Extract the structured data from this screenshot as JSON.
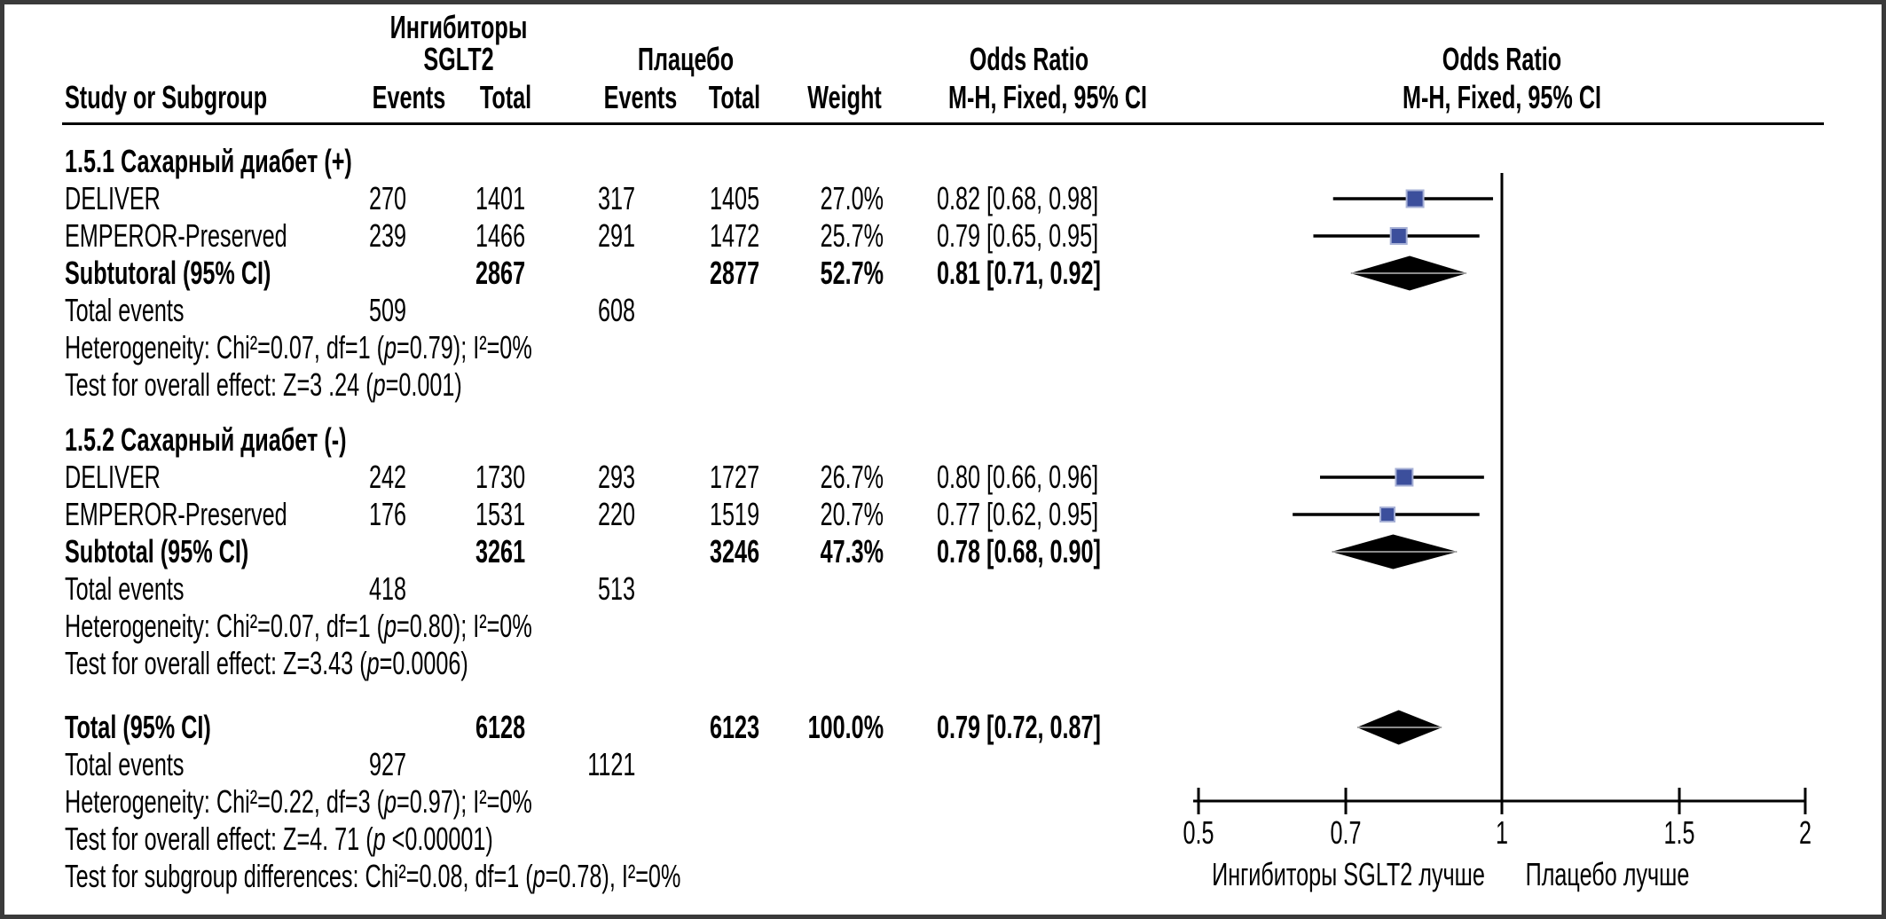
{
  "header": {
    "col_study": "Study or Subgroup",
    "group1_line1": "Ингибиторы",
    "group1_line2": "SGLT2",
    "group2": "Плацебо",
    "col_events1": "Events",
    "col_total1": "Total",
    "col_events2": "Events",
    "col_total2": "Total",
    "col_weight": "Weight",
    "or_text_col_line1": "Odds Ratio",
    "or_text_col_line2": "M-H, Fixed, 95% CI",
    "or_plot_col_line1": "Odds Ratio",
    "or_plot_col_line2": "M-H, Fixed, 95% CI"
  },
  "sections": [
    {
      "title": "1.5.1 Сахарный диабет (+)",
      "rows": [
        {
          "study": "DELIVER",
          "events1": "270",
          "total1": "1401",
          "events2": "317",
          "total2": "1405",
          "weight": "27.0%",
          "or_ci": "0.82 [0.68, 0.98]"
        },
        {
          "study": "EMPEROR-Preserved",
          "events1": "239",
          "total1": "1466",
          "events2": "291",
          "total2": "1472",
          "weight": "25.7%",
          "or_ci": "0.79 [0.65, 0.95]"
        }
      ],
      "subtotal": {
        "label": "Subtutoral (95% CI)",
        "total1": "2867",
        "total2": "2877",
        "weight": "52.7%",
        "or_ci": "0.81 [0.71, 0.92]"
      },
      "total_events": {
        "label": "Total events",
        "events1": "509",
        "events2": "608"
      },
      "heterogeneity": "Heterogeneity: Chi²=0.07, df=1 (p=0.79); I²=0%",
      "overall_effect": "Test for overall effect: Z=3 .24 (p=0.001)"
    },
    {
      "title": "1.5.2 Сахарный диабет (-)",
      "rows": [
        {
          "study": "DELIVER",
          "events1": "242",
          "total1": "1730",
          "events2": "293",
          "total2": "1727",
          "weight": "26.7%",
          "or_ci": "0.80 [0.66, 0.96]"
        },
        {
          "study": "EMPEROR-Preserved",
          "events1": "176",
          "total1": "1531",
          "events2": "220",
          "total2": "1519",
          "weight": "20.7%",
          "or_ci": "0.77 [0.62, 0.95]"
        }
      ],
      "subtotal": {
        "label": "Subtotal (95% CI)",
        "total1": "3261",
        "total2": "3246",
        "weight": "47.3%",
        "or_ci": "0.78 [0.68, 0.90]"
      },
      "total_events": {
        "label": "Total events",
        "events1": "418",
        "events2": "513"
      },
      "heterogeneity": "Heterogeneity: Chi²=0.07, df=1 (p=0.80); I²=0%",
      "overall_effect": "Test for overall effect: Z=3.43 (p=0.0006)"
    }
  ],
  "total_block": {
    "label": "Total (95% CI)",
    "total1": "6128",
    "total2": "6123",
    "weight": "100.0%",
    "or_ci": "0.79 [0.72, 0.87]",
    "total_events": {
      "label": "Total events",
      "events1": "927",
      "events2": "1121"
    },
    "heterogeneity": "Heterogeneity: Chi²=0.22, df=3 (p=0.97); I²=0%",
    "overall_effect": "Test for overall effect: Z=4. 71 (p <0.00001)",
    "subgroup_diff": "Test for subgroup differences: Chi²=0.08, df=1 (p=0.78), I²=0%"
  },
  "chart_data": {
    "type": "scatter",
    "subtype": "forest-plot",
    "x_scale": "log",
    "effect_measure": "Odds Ratio, M-H, Fixed, 95% CI",
    "axis_ticks": [
      "0.5",
      "0.7",
      "1",
      "1.5",
      "2"
    ],
    "axis_range": [
      0.5,
      2
    ],
    "null_line": 1,
    "xlabel_left": "Ингибиторы SGLT2 лучше",
    "xlabel_right": "Плацебо лучше",
    "marker_color": "#3C4F9C",
    "marker_border": "#A7B1D6",
    "line_color": "#000000",
    "diamond_color": "#000000",
    "studies": [
      {
        "group": "1.5.1 Сахарный диабет (+)",
        "study": "DELIVER",
        "or": 0.82,
        "ci_low": 0.68,
        "ci_high": 0.98,
        "weight_pct": 27.0
      },
      {
        "group": "1.5.1 Сахарный диабет (+)",
        "study": "EMPEROR-Preserved",
        "or": 0.79,
        "ci_low": 0.65,
        "ci_high": 0.95,
        "weight_pct": 25.7
      },
      {
        "group": "1.5.2 Сахарный диабет (-)",
        "study": "DELIVER",
        "or": 0.8,
        "ci_low": 0.66,
        "ci_high": 0.96,
        "weight_pct": 26.7
      },
      {
        "group": "1.5.2 Сахарный диабет (-)",
        "study": "EMPEROR-Preserved",
        "or": 0.77,
        "ci_low": 0.62,
        "ci_high": 0.95,
        "weight_pct": 20.7
      }
    ],
    "diamonds": [
      {
        "label": "Subtutoral (95% CI) 1.5.1",
        "or": 0.81,
        "ci_low": 0.71,
        "ci_high": 0.92
      },
      {
        "label": "Subtotal (95% CI) 1.5.2",
        "or": 0.78,
        "ci_low": 0.68,
        "ci_high": 0.9
      },
      {
        "label": "Total (95% CI)",
        "or": 0.79,
        "ci_low": 0.72,
        "ci_high": 0.87
      }
    ]
  }
}
